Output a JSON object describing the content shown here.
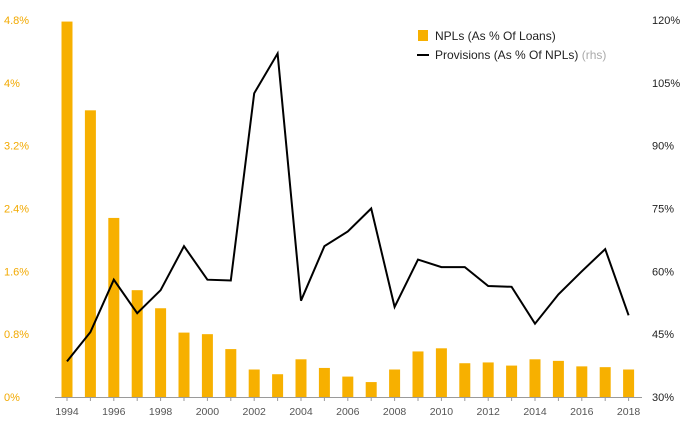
{
  "chart_data": {
    "type": "bar+line",
    "title": "",
    "xlabel": "",
    "ylabel": "",
    "x": [
      1994,
      1995,
      1996,
      1997,
      1998,
      1999,
      2000,
      2001,
      2002,
      2003,
      2004,
      2005,
      2006,
      2007,
      2008,
      2009,
      2010,
      2011,
      2012,
      2013,
      2014,
      2015,
      2016,
      2017,
      2018
    ],
    "x_tick_labels": [
      "1994",
      "1996",
      "1998",
      "2000",
      "2002",
      "2004",
      "2006",
      "2008",
      "2010",
      "2012",
      "2014",
      "2016",
      "2018"
    ],
    "y_left": {
      "min": 0,
      "max": 4.8,
      "ticks": [
        0,
        0.8,
        1.6,
        2.4,
        3.2,
        4,
        4.8
      ],
      "tick_labels": [
        "0%",
        "0.8%",
        "1.6%",
        "2.4%",
        "3.2%",
        "4%",
        "4.8%"
      ],
      "color": "#f2a900"
    },
    "y_right": {
      "min": 30,
      "max": 120,
      "ticks": [
        30,
        45,
        60,
        75,
        90,
        105,
        120
      ],
      "tick_labels": [
        "30%",
        "45%",
        "60%",
        "75%",
        "90%",
        "105%",
        "120%"
      ]
    },
    "series": [
      {
        "name": "NPLs (As % Of Loans)",
        "type": "bar",
        "axis": "left",
        "color": "#f7b000",
        "values": [
          4.78,
          3.65,
          2.28,
          1.36,
          1.13,
          0.82,
          0.8,
          0.61,
          0.35,
          0.29,
          0.48,
          0.37,
          0.26,
          0.19,
          0.35,
          0.58,
          0.62,
          0.43,
          0.44,
          0.4,
          0.48,
          0.46,
          0.39,
          0.38,
          0.35
        ]
      },
      {
        "name": "Provisions (As % Of NPLs)",
        "name_note": "(rhs)",
        "type": "line",
        "axis": "right",
        "color": "#000000",
        "values": [
          38.5,
          45.5,
          58,
          50,
          55.5,
          66,
          58,
          57.8,
          102.5,
          112,
          53,
          66,
          69.5,
          75,
          51.5,
          62.8,
          61,
          61,
          56.5,
          56.3,
          47.5,
          54.5,
          60,
          65.3,
          49.5
        ]
      }
    ],
    "legend": {
      "placement": "top-right"
    },
    "grid": false
  }
}
